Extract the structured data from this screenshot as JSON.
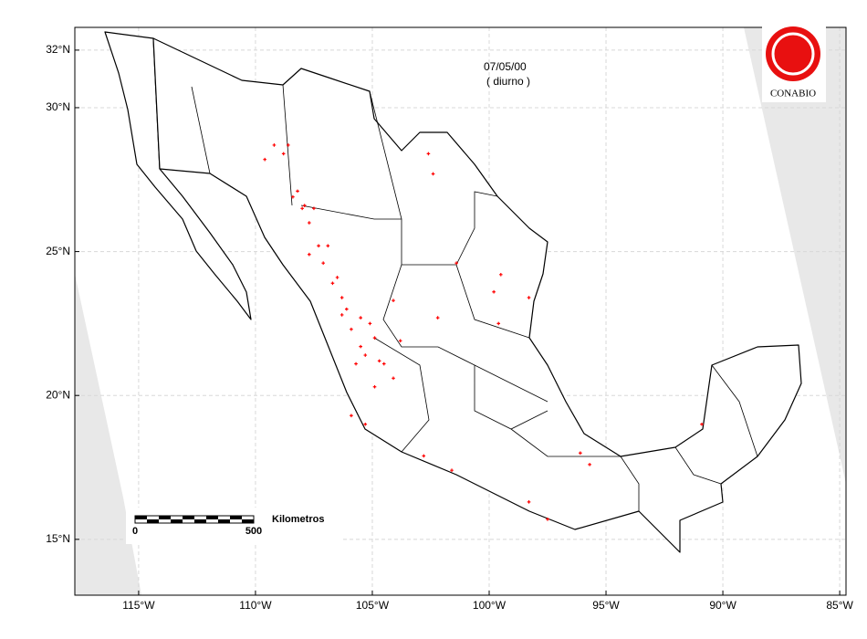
{
  "map": {
    "date": "07/05/00",
    "mode": "( diurno )",
    "logo": "CONABIO",
    "xlim": [
      -117.73,
      -84.73
    ],
    "ylim": [
      13.06,
      32.79
    ],
    "xticks": [
      {
        "value": -115,
        "label": "115°W"
      },
      {
        "value": -110,
        "label": "110°W"
      },
      {
        "value": -105,
        "label": "105°W"
      },
      {
        "value": -100,
        "label": "100°W"
      },
      {
        "value": -95,
        "label": "95°W"
      },
      {
        "value": -90,
        "label": "90°W"
      },
      {
        "value": -85,
        "label": "85°W"
      }
    ],
    "yticks": [
      {
        "value": 15,
        "label": "15°N"
      },
      {
        "value": 20,
        "label": "20°N"
      },
      {
        "value": 25,
        "label": "25°N"
      },
      {
        "value": 30,
        "label": "30°N"
      },
      {
        "value": 32,
        "label": "32°N"
      }
    ],
    "scale_bar": {
      "unit": "Kilometros",
      "start": 0,
      "end": 500
    },
    "fire_color": "#ff0000",
    "fires": [
      [
        -109.2,
        28.7
      ],
      [
        -108.6,
        28.7
      ],
      [
        -108.4,
        26.9
      ],
      [
        -108.0,
        26.5
      ],
      [
        -107.7,
        26.0
      ],
      [
        -107.3,
        25.2
      ],
      [
        -107.1,
        24.6
      ],
      [
        -106.7,
        23.9
      ],
      [
        -106.3,
        23.4
      ],
      [
        -106.1,
        23.0
      ],
      [
        -105.5,
        22.7
      ],
      [
        -105.1,
        22.5
      ],
      [
        -104.9,
        22.0
      ],
      [
        -105.3,
        21.4
      ],
      [
        -104.5,
        21.1
      ],
      [
        -104.1,
        20.6
      ],
      [
        -104.9,
        20.3
      ],
      [
        -105.9,
        19.3
      ],
      [
        -105.3,
        19.0
      ],
      [
        -102.6,
        28.4
      ],
      [
        -102.4,
        27.7
      ],
      [
        -101.4,
        24.6
      ],
      [
        -99.8,
        23.6
      ],
      [
        -99.6,
        22.5
      ],
      [
        -99.5,
        24.2
      ],
      [
        -98.3,
        23.4
      ],
      [
        -104.1,
        23.3
      ],
      [
        -103.8,
        21.9
      ],
      [
        -102.2,
        22.7
      ],
      [
        -102.8,
        17.9
      ],
      [
        -101.6,
        17.4
      ],
      [
        -98.3,
        16.3
      ],
      [
        -97.5,
        15.7
      ],
      [
        -96.1,
        18.0
      ],
      [
        -95.7,
        17.6
      ],
      [
        -90.9,
        19.0
      ],
      [
        -106.9,
        25.2
      ],
      [
        -107.5,
        26.5
      ],
      [
        -107.9,
        26.6
      ],
      [
        -108.2,
        27.1
      ],
      [
        -105.9,
        22.3
      ],
      [
        -105.5,
        21.7
      ],
      [
        -104.7,
        21.2
      ],
      [
        -106.3,
        22.8
      ],
      [
        -107.7,
        24.9
      ],
      [
        -106.5,
        24.1
      ],
      [
        -105.7,
        21.1
      ],
      [
        -108.8,
        28.4
      ],
      [
        -109.6,
        28.2
      ]
    ]
  }
}
